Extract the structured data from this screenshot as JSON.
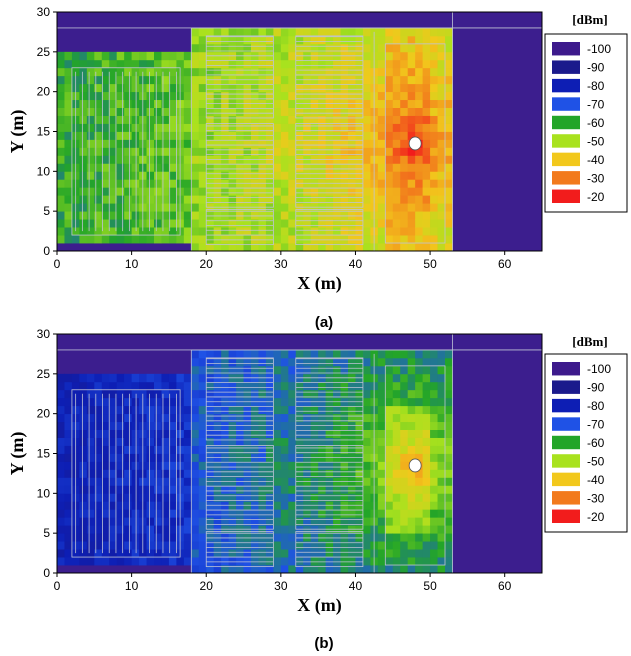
{
  "chart_data": [
    {
      "type": "heatmap",
      "caption": "(a)",
      "xlabel": "X (m)",
      "ylabel": "Y (m)",
      "xlim": [
        0,
        65
      ],
      "ylim": [
        0,
        30
      ],
      "xticks": [
        "0",
        "10",
        "20",
        "30",
        "40",
        "50",
        "60"
      ],
      "yticks": [
        "0",
        "5",
        "10",
        "15",
        "20",
        "25",
        "30"
      ],
      "unit": "[dBm]",
      "legend": [
        {
          "label": "-100",
          "color": "#3d1a8c"
        },
        {
          "label": "-90",
          "color": "#1a1a8c"
        },
        {
          "label": "-80",
          "color": "#0d1eb4"
        },
        {
          "label": "-70",
          "color": "#1f52e6"
        },
        {
          "label": "-60",
          "color": "#23a528"
        },
        {
          "label": "-50",
          "color": "#a8e21e"
        },
        {
          "label": "-40",
          "color": "#f2c81c"
        },
        {
          "label": "-30",
          "color": "#f27a1c"
        },
        {
          "label": "-20",
          "color": "#f21c1c"
        }
      ],
      "transmitter": {
        "x": 48,
        "y": 13.5
      }
    },
    {
      "type": "heatmap",
      "caption": "(b)",
      "xlabel": "X (m)",
      "ylabel": "Y (m)",
      "xlim": [
        0,
        65
      ],
      "ylim": [
        0,
        30
      ],
      "xticks": [
        "0",
        "10",
        "20",
        "30",
        "40",
        "50",
        "60"
      ],
      "yticks": [
        "0",
        "5",
        "10",
        "15",
        "20",
        "25",
        "30"
      ],
      "unit": "[dBm]",
      "legend": [
        {
          "label": "-100",
          "color": "#3d1a8c"
        },
        {
          "label": "-90",
          "color": "#1a1a8c"
        },
        {
          "label": "-80",
          "color": "#0d1eb4"
        },
        {
          "label": "-70",
          "color": "#1f52e6"
        },
        {
          "label": "-60",
          "color": "#23a528"
        },
        {
          "label": "-50",
          "color": "#a8e21e"
        },
        {
          "label": "-40",
          "color": "#f2c81c"
        },
        {
          "label": "-30",
          "color": "#f27a1c"
        },
        {
          "label": "-20",
          "color": "#f21c1c"
        }
      ],
      "transmitter": {
        "x": 48,
        "y": 13.5
      }
    }
  ],
  "colors": {
    "outside": "#3c1e8e",
    "building_lines": "#bfc3d6"
  }
}
